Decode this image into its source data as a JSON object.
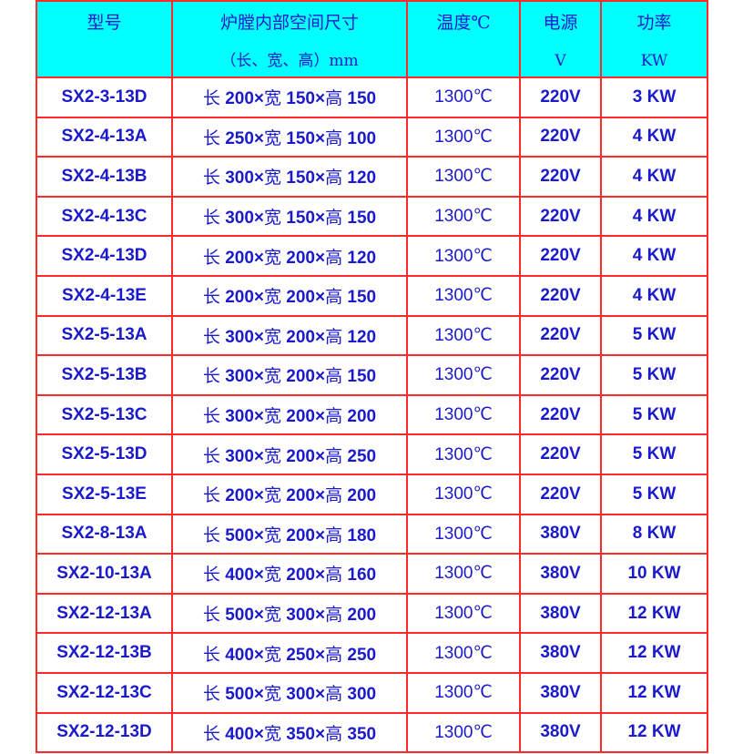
{
  "header": [
    {
      "line1": "型号",
      "line2": ""
    },
    {
      "line1": "炉膛内部空间尺寸",
      "line2": "（长、宽、高）mm"
    },
    {
      "line1": "温度℃",
      "line2": ""
    },
    {
      "line1": "电源",
      "line2": "V"
    },
    {
      "line1": "功率",
      "line2": "KW"
    }
  ],
  "labels": {
    "length": "长",
    "width": "宽",
    "height": "高"
  },
  "rows": [
    {
      "model": "SX2-3-13D",
      "l": "200",
      "w": "150",
      "h": "150",
      "temp": "1300℃",
      "voltage": "220V",
      "power": "3 KW"
    },
    {
      "model": "SX2-4-13A",
      "l": "250",
      "w": "150",
      "h": "100",
      "temp": "1300℃",
      "voltage": "220V",
      "power": "4 KW"
    },
    {
      "model": "SX2-4-13B",
      "l": "300",
      "w": "150",
      "h": "120",
      "temp": "1300℃",
      "voltage": "220V",
      "power": "4 KW"
    },
    {
      "model": "SX2-4-13C",
      "l": "300",
      "w": "150",
      "h": "150",
      "temp": "1300℃",
      "voltage": "220V",
      "power": "4 KW"
    },
    {
      "model": "SX2-4-13D",
      "l": "200",
      "w": "200",
      "h": "120",
      "temp": "1300℃",
      "voltage": "220V",
      "power": "4 KW"
    },
    {
      "model": "SX2-4-13E",
      "l": "200",
      "w": "200",
      "h": "150",
      "temp": "1300℃",
      "voltage": "220V",
      "power": "4 KW"
    },
    {
      "model": "SX2-5-13A",
      "l": "300",
      "w": "200",
      "h": "120",
      "temp": "1300℃",
      "voltage": "220V",
      "power": "5 KW"
    },
    {
      "model": "SX2-5-13B",
      "l": "300",
      "w": "200",
      "h": "150",
      "temp": "1300℃",
      "voltage": "220V",
      "power": "5 KW"
    },
    {
      "model": "SX2-5-13C",
      "l": "300",
      "w": "200",
      "h": "200",
      "temp": "1300℃",
      "voltage": "220V",
      "power": "5 KW"
    },
    {
      "model": "SX2-5-13D",
      "l": "300",
      "w": "200",
      "h": "250",
      "temp": "1300℃",
      "voltage": "220V",
      "power": "5 KW"
    },
    {
      "model": "SX2-5-13E",
      "l": "200",
      "w": "200",
      "h": "200",
      "temp": "1300℃",
      "voltage": "220V",
      "power": "5 KW"
    },
    {
      "model": "SX2-8-13A",
      "l": "500",
      "w": "200",
      "h": "180",
      "temp": "1300℃",
      "voltage": "380V",
      "power": "8 KW"
    },
    {
      "model": "SX2-10-13A",
      "l": "400",
      "w": "200",
      "h": "160",
      "temp": "1300℃",
      "voltage": "380V",
      "power": "10 KW"
    },
    {
      "model": "SX2-12-13A",
      "l": "500",
      "w": "300",
      "h": "200",
      "temp": "1300℃",
      "voltage": "380V",
      "power": "12 KW"
    },
    {
      "model": "SX2-12-13B",
      "l": "400",
      "w": "250",
      "h": "250",
      "temp": "1300℃",
      "voltage": "380V",
      "power": "12 KW"
    },
    {
      "model": "SX2-12-13C",
      "l": "500",
      "w": "300",
      "h": "300",
      "temp": "1300℃",
      "voltage": "380V",
      "power": "12 KW"
    },
    {
      "model": "SX2-12-13D",
      "l": "400",
      "w": "350",
      "h": "350",
      "temp": "1300℃",
      "voltage": "380V",
      "power": "12 KW"
    }
  ],
  "colors": {
    "header_bg": "#00ffff",
    "border": "#ff2a2a",
    "text": "#1a1acc"
  }
}
